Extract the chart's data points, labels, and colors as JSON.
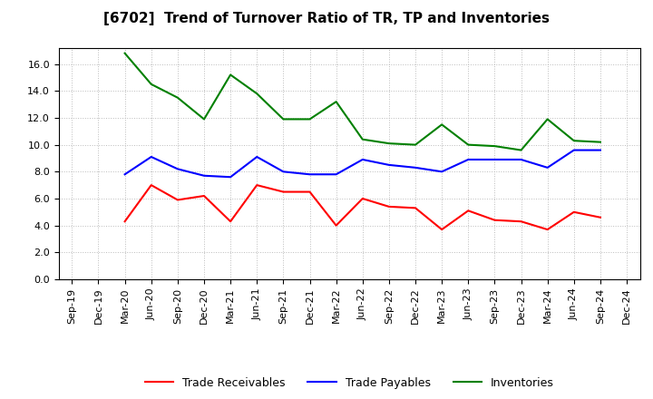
{
  "title": "[6702]  Trend of Turnover Ratio of TR, TP and Inventories",
  "x_labels": [
    "Sep-19",
    "Dec-19",
    "Mar-20",
    "Jun-20",
    "Sep-20",
    "Dec-20",
    "Mar-21",
    "Jun-21",
    "Sep-21",
    "Dec-21",
    "Mar-22",
    "Jun-22",
    "Sep-22",
    "Dec-22",
    "Mar-23",
    "Jun-23",
    "Sep-23",
    "Dec-23",
    "Mar-24",
    "Jun-24",
    "Sep-24",
    "Dec-24"
  ],
  "trade_receivables": [
    null,
    null,
    4.3,
    7.0,
    5.9,
    6.2,
    4.3,
    7.0,
    6.5,
    6.5,
    4.0,
    6.0,
    5.4,
    5.3,
    3.7,
    5.1,
    4.4,
    4.3,
    3.7,
    5.0,
    4.6,
    null
  ],
  "trade_payables": [
    null,
    null,
    7.8,
    9.1,
    8.2,
    7.7,
    7.6,
    9.1,
    8.0,
    7.8,
    7.8,
    8.9,
    8.5,
    8.3,
    8.0,
    8.9,
    8.9,
    8.9,
    8.3,
    9.6,
    9.6,
    null
  ],
  "inventories": [
    null,
    null,
    16.8,
    14.5,
    13.5,
    11.9,
    15.2,
    13.8,
    11.9,
    11.9,
    13.2,
    10.4,
    10.1,
    10.0,
    11.5,
    10.0,
    9.9,
    9.6,
    11.9,
    10.3,
    10.2,
    null
  ],
  "tr_color": "#ff0000",
  "tp_color": "#0000ff",
  "inv_color": "#008000",
  "ylim": [
    0.0,
    17.2
  ],
  "yticks": [
    0.0,
    2.0,
    4.0,
    6.0,
    8.0,
    10.0,
    12.0,
    14.0,
    16.0
  ],
  "bg_color": "#ffffff",
  "plot_bg_color": "#ffffff",
  "grid_color": "#bbbbbb",
  "legend_labels": [
    "Trade Receivables",
    "Trade Payables",
    "Inventories"
  ]
}
